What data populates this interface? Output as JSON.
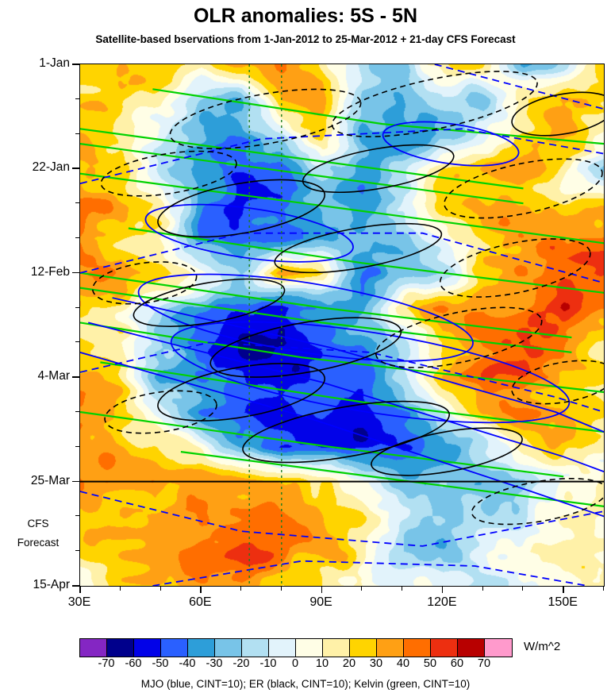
{
  "chart_data": {
    "type": "heatmap",
    "title": "OLR anomalies: 5S - 5N",
    "subtitle": "Satellite-based bservations from 1-Jan-2012 to 25-Mar-2012 + 21-day CFS Forecast",
    "caption": "MJO (blue, CINT=10); ER (black, CINT=10); Kelvin (green, CINT=10)",
    "units": "W/m^2",
    "x_axis": {
      "range_lon_deg_east": [
        30,
        160
      ],
      "major_ticks": [
        {
          "lon": 30,
          "label": "30E"
        },
        {
          "lon": 60,
          "label": "60E"
        },
        {
          "lon": 90,
          "label": "90E"
        },
        {
          "lon": 120,
          "label": "120E"
        },
        {
          "lon": 150,
          "label": "150E"
        }
      ],
      "minor_step_deg": 10
    },
    "y_axis": {
      "range_days": [
        0,
        105
      ],
      "start_date": "1-Jan-2012",
      "major_ticks": [
        {
          "day": 0,
          "label": "1-Jan"
        },
        {
          "day": 21,
          "label": "22-Jan"
        },
        {
          "day": 42,
          "label": "12-Feb"
        },
        {
          "day": 63,
          "label": "4-Mar"
        },
        {
          "day": 84,
          "label": "25-Mar"
        },
        {
          "day": 105,
          "label": "15-Apr"
        }
      ],
      "minor_step_days": 7
    },
    "forecast": {
      "boundary_day": 84,
      "label_line1": "CFS",
      "label_line2": "Forecast"
    },
    "reference_lons_deg_east": [
      72,
      80
    ],
    "colorbar": {
      "levels": [
        -70,
        -60,
        -50,
        -40,
        -30,
        -20,
        -10,
        0,
        10,
        20,
        30,
        40,
        50,
        60,
        70
      ],
      "labels": [
        "-70",
        "-60",
        "-50",
        "-40",
        "-30",
        "-20",
        "-10",
        "0",
        "10",
        "20",
        "30",
        "40",
        "50",
        "60",
        "70"
      ],
      "colors": [
        "#8426C3",
        "#00008C",
        "#0202E8",
        "#2A60FF",
        "#2D9ED9",
        "#78C4E8",
        "#B2E0F2",
        "#E2F3FB",
        "#FFFEE6",
        "#FFF1A8",
        "#FFD400",
        "#FFA014",
        "#FF6E00",
        "#ED2F10",
        "#B80000",
        "#FF9ACC"
      ]
    },
    "grid": {
      "lons_deg_east": [
        30,
        40,
        50,
        60,
        70,
        80,
        90,
        100,
        110,
        120,
        130,
        140,
        150,
        160
      ],
      "days": [
        0,
        7,
        14,
        21,
        28,
        35,
        42,
        49,
        56,
        63,
        70,
        77,
        84,
        91,
        98,
        105
      ],
      "olr_anomaly_wm2": [
        [
          25,
          30,
          22,
          18,
          38,
          48,
          18,
          -18,
          -22,
          18,
          25,
          -22,
          -12,
          28
        ],
        [
          22,
          28,
          12,
          -12,
          -22,
          28,
          32,
          -28,
          -32,
          -15,
          -22,
          18,
          32,
          25
        ],
        [
          30,
          24,
          4,
          -22,
          -28,
          -12,
          22,
          -32,
          -38,
          -28,
          -8,
          22,
          32,
          18
        ],
        [
          36,
          30,
          -12,
          -32,
          -42,
          -46,
          -18,
          -26,
          -12,
          22,
          32,
          36,
          18,
          -14
        ],
        [
          42,
          34,
          18,
          -36,
          -52,
          -44,
          -30,
          -28,
          -8,
          26,
          30,
          24,
          14,
          22
        ],
        [
          30,
          24,
          8,
          -42,
          -46,
          -56,
          -34,
          -24,
          -18,
          6,
          26,
          36,
          42,
          46
        ],
        [
          46,
          34,
          24,
          4,
          -14,
          38,
          22,
          -36,
          -30,
          -18,
          26,
          32,
          52,
          56
        ],
        [
          30,
          18,
          -12,
          -30,
          -42,
          -52,
          -36,
          -28,
          16,
          42,
          44,
          30,
          56,
          40
        ],
        [
          24,
          14,
          -22,
          -46,
          -56,
          -66,
          -46,
          -34,
          -14,
          26,
          46,
          50,
          34,
          24
        ],
        [
          32,
          26,
          -26,
          -42,
          -46,
          -52,
          -50,
          -44,
          -18,
          22,
          42,
          46,
          30,
          24
        ],
        [
          30,
          20,
          6,
          -32,
          -52,
          -56,
          -46,
          -52,
          -40,
          -18,
          26,
          36,
          30,
          20
        ],
        [
          36,
          30,
          20,
          10,
          -36,
          -46,
          -52,
          -50,
          -44,
          -30,
          -14,
          16,
          26,
          20
        ],
        [
          46,
          36,
          30,
          36,
          32,
          30,
          20,
          4,
          -20,
          -26,
          -30,
          -20,
          6,
          10
        ],
        [
          40,
          36,
          42,
          46,
          40,
          36,
          26,
          10,
          -10,
          -26,
          -20,
          -10,
          6,
          10
        ],
        [
          20,
          26,
          36,
          42,
          52,
          46,
          30,
          14,
          -16,
          -26,
          -14,
          6,
          10,
          6
        ],
        [
          15,
          20,
          26,
          32,
          36,
          30,
          20,
          10,
          0,
          -16,
          -20,
          -6,
          6,
          10
        ]
      ]
    },
    "waves": {
      "colors": {
        "mjo": "#0000FF",
        "er": "#000000",
        "kelvin": "#00D200",
        "reference": "#1E7D1E"
      },
      "cint_wm2": 10,
      "overlays": [
        {
          "wave": "kelvin",
          "shape": "line",
          "style": "solid",
          "pts": [
            [
              48,
              5
            ],
            [
              105,
              12
            ],
            [
              160,
              16
            ]
          ]
        },
        {
          "wave": "kelvin",
          "shape": "line",
          "style": "solid",
          "pts": [
            [
              30,
              13
            ],
            [
              85,
              19
            ],
            [
              140,
              25
            ]
          ]
        },
        {
          "wave": "kelvin",
          "shape": "line",
          "style": "solid",
          "pts": [
            [
              30,
              16
            ],
            [
              85,
              22
            ],
            [
              140,
              28
            ]
          ]
        },
        {
          "wave": "kelvin",
          "shape": "line",
          "style": "solid",
          "pts": [
            [
              30,
              22
            ],
            [
              95,
              29
            ],
            [
              160,
              36
            ]
          ]
        },
        {
          "wave": "kelvin",
          "shape": "line",
          "style": "solid",
          "pts": [
            [
              42,
              33
            ],
            [
              100,
              40
            ],
            [
              160,
              46
            ]
          ]
        },
        {
          "wave": "kelvin",
          "shape": "line",
          "style": "solid",
          "pts": [
            [
              30,
              42
            ],
            [
              90,
              49
            ],
            [
              152,
              55
            ]
          ]
        },
        {
          "wave": "kelvin",
          "shape": "line",
          "style": "solid",
          "pts": [
            [
              30,
              45
            ],
            [
              90,
              52
            ],
            [
              152,
              58
            ]
          ]
        },
        {
          "wave": "kelvin",
          "shape": "line",
          "style": "solid",
          "pts": [
            [
              30,
              52
            ],
            [
              85,
              59
            ],
            [
              160,
              66
            ]
          ]
        },
        {
          "wave": "kelvin",
          "shape": "line",
          "style": "solid",
          "pts": [
            [
              35,
              60
            ],
            [
              100,
              68
            ],
            [
              160,
              74
            ]
          ]
        },
        {
          "wave": "kelvin",
          "shape": "line",
          "style": "solid",
          "pts": [
            [
              30,
              70
            ],
            [
              92,
              77
            ],
            [
              150,
              83
            ]
          ]
        },
        {
          "wave": "kelvin",
          "shape": "line",
          "style": "solid",
          "pts": [
            [
              55,
              78
            ],
            [
              112,
              84
            ],
            [
              160,
              89
            ]
          ]
        },
        {
          "wave": "mjo",
          "shape": "line",
          "style": "dashed",
          "pts": [
            [
              30,
              24
            ],
            [
              75,
              15
            ],
            [
              125,
              13
            ],
            [
              160,
              18
            ]
          ]
        },
        {
          "wave": "mjo",
          "shape": "line",
          "style": "dashed",
          "pts": [
            [
              118,
              0
            ],
            [
              160,
              9
            ]
          ]
        },
        {
          "wave": "mjo",
          "shape": "line",
          "style": "dashed",
          "pts": [
            [
              30,
              42
            ],
            [
              70,
              34
            ],
            [
              115,
              34
            ],
            [
              160,
              44
            ]
          ]
        },
        {
          "wave": "mjo",
          "shape": "line",
          "style": "dashed",
          "pts": [
            [
              30,
              62
            ],
            [
              62,
              56
            ],
            [
              102,
              58
            ],
            [
              148,
              67
            ],
            [
              160,
              70
            ]
          ]
        },
        {
          "wave": "mjo",
          "shape": "line",
          "style": "dashed",
          "pts": [
            [
              30,
              86
            ],
            [
              70,
              94
            ],
            [
              115,
              97
            ],
            [
              160,
              90
            ]
          ]
        },
        {
          "wave": "mjo",
          "shape": "line",
          "style": "dashed",
          "pts": [
            [
              48,
              105
            ],
            [
              85,
              100
            ],
            [
              128,
              101
            ],
            [
              156,
              105
            ]
          ]
        },
        {
          "wave": "mjo",
          "shape": "ellipse",
          "style": "solid",
          "c": [
            86,
            51
          ],
          "r": [
            42,
            7
          ],
          "rot": 9
        },
        {
          "wave": "mjo",
          "shape": "ellipse",
          "style": "solid",
          "c": [
            102,
            62
          ],
          "r": [
            50,
            8
          ],
          "rot": 9
        },
        {
          "wave": "mjo",
          "shape": "ellipse",
          "style": "solid",
          "c": [
            72,
            34
          ],
          "r": [
            26,
            5
          ],
          "rot": 8
        },
        {
          "wave": "mjo",
          "shape": "ellipse",
          "style": "solid",
          "c": [
            122,
            16
          ],
          "r": [
            17,
            4
          ],
          "rot": 8
        },
        {
          "wave": "mjo",
          "shape": "line",
          "style": "solid",
          "pts": [
            [
              38,
              47
            ],
            [
              92,
              57
            ],
            [
              148,
              70
            ],
            [
              160,
              74
            ]
          ]
        },
        {
          "wave": "mjo",
          "shape": "line",
          "style": "solid",
          "pts": [
            [
              32,
              52
            ],
            [
              90,
              64
            ],
            [
              150,
              79
            ],
            [
              160,
              82
            ]
          ]
        },
        {
          "wave": "mjo",
          "shape": "line",
          "style": "solid",
          "pts": [
            [
              30,
              58
            ],
            [
              86,
              71
            ],
            [
              142,
              86
            ],
            [
              160,
              91
            ]
          ]
        },
        {
          "wave": "er",
          "shape": "ellipse",
          "style": "dashed",
          "c": [
            118,
            8
          ],
          "r": [
            26,
            5
          ],
          "rot": -12
        },
        {
          "wave": "er",
          "shape": "ellipse",
          "style": "dashed",
          "c": [
            76,
            11
          ],
          "r": [
            24,
            5
          ],
          "rot": -10
        },
        {
          "wave": "er",
          "shape": "ellipse",
          "style": "dashed",
          "c": [
            52,
            22
          ],
          "r": [
            17,
            4
          ],
          "rot": -9
        },
        {
          "wave": "er",
          "shape": "ellipse",
          "style": "dashed",
          "c": [
            140,
            25
          ],
          "r": [
            20,
            5
          ],
          "rot": -12
        },
        {
          "wave": "er",
          "shape": "ellipse",
          "style": "dashed",
          "c": [
            138,
            41
          ],
          "r": [
            19,
            5
          ],
          "rot": -12
        },
        {
          "wave": "er",
          "shape": "ellipse",
          "style": "dashed",
          "c": [
            46,
            44
          ],
          "r": [
            13,
            4
          ],
          "rot": -8
        },
        {
          "wave": "er",
          "shape": "ellipse",
          "style": "dashed",
          "c": [
            124,
            55
          ],
          "r": [
            21,
            5
          ],
          "rot": -12
        },
        {
          "wave": "er",
          "shape": "ellipse",
          "style": "dashed",
          "c": [
            50,
            70
          ],
          "r": [
            14,
            4
          ],
          "rot": -8
        },
        {
          "wave": "er",
          "shape": "ellipse",
          "style": "dashed",
          "c": [
            150,
            64
          ],
          "r": [
            13,
            4
          ],
          "rot": -10
        },
        {
          "wave": "er",
          "shape": "ellipse",
          "style": "dashed",
          "c": [
            144,
            88
          ],
          "r": [
            17,
            4
          ],
          "rot": -10
        },
        {
          "wave": "er",
          "shape": "ellipse",
          "style": "solid",
          "c": [
            104,
            21
          ],
          "r": [
            19,
            4
          ],
          "rot": -10
        },
        {
          "wave": "er",
          "shape": "ellipse",
          "style": "solid",
          "c": [
            70,
            29
          ],
          "r": [
            21,
            5
          ],
          "rot": -10
        },
        {
          "wave": "er",
          "shape": "ellipse",
          "style": "solid",
          "c": [
            99,
            37
          ],
          "r": [
            21,
            4
          ],
          "rot": -10
        },
        {
          "wave": "er",
          "shape": "ellipse",
          "style": "solid",
          "c": [
            62,
            48
          ],
          "r": [
            19,
            4
          ],
          "rot": -10
        },
        {
          "wave": "er",
          "shape": "ellipse",
          "style": "solid",
          "c": [
            86,
            57
          ],
          "r": [
            24,
            5
          ],
          "rot": -10
        },
        {
          "wave": "er",
          "shape": "ellipse",
          "style": "solid",
          "c": [
            70,
            66
          ],
          "r": [
            21,
            5
          ],
          "rot": -10
        },
        {
          "wave": "er",
          "shape": "ellipse",
          "style": "solid",
          "c": [
            96,
            74
          ],
          "r": [
            26,
            5
          ],
          "rot": -10
        },
        {
          "wave": "er",
          "shape": "ellipse",
          "style": "solid",
          "c": [
            121,
            78
          ],
          "r": [
            19,
            4
          ],
          "rot": -10
        },
        {
          "wave": "er",
          "shape": "ellipse",
          "style": "solid",
          "c": [
            150,
            10
          ],
          "r": [
            13,
            4
          ],
          "rot": -10
        }
      ]
    }
  }
}
